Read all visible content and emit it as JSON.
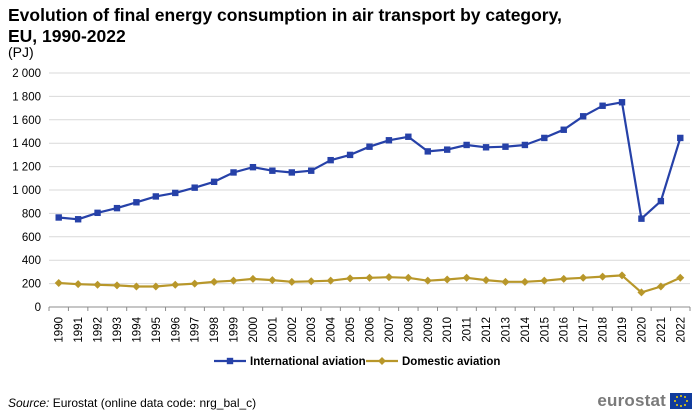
{
  "title": "Evolution of final energy consumption in air transport by category, EU, 1990-2022",
  "unit": "(PJ)",
  "source": {
    "label": "Source:",
    "text": " Eurostat (online data code: nrg_bal_c)"
  },
  "logo": {
    "text": "eurostat"
  },
  "colors": {
    "international": "#2641a8",
    "domestic": "#b8972a",
    "grid": "#d9d9d9"
  },
  "chart_data": {
    "type": "line",
    "title": "Evolution of final energy consumption in air transport by category, EU, 1990-2022",
    "ylabel": "(PJ)",
    "xlabel": "",
    "ylim": [
      0,
      2000
    ],
    "yticks": [
      0,
      200,
      400,
      600,
      800,
      1000,
      1200,
      1400,
      1600,
      1800,
      2000
    ],
    "ytick_labels": [
      "0",
      "200",
      "400",
      "600",
      "800",
      "1 000",
      "1 200",
      "1 400",
      "1 600",
      "1 800",
      "2 000"
    ],
    "grid": true,
    "legend": "bottom-center",
    "categories": [
      "1990",
      "1991",
      "1992",
      "1993",
      "1994",
      "1995",
      "1996",
      "1997",
      "1998",
      "1999",
      "2000",
      "2001",
      "2002",
      "2003",
      "2004",
      "2005",
      "2006",
      "2007",
      "2008",
      "2009",
      "2010",
      "2011",
      "2012",
      "2013",
      "2014",
      "2015",
      "2016",
      "2017",
      "2018",
      "2019",
      "2020",
      "2021",
      "2022"
    ],
    "series": [
      {
        "name": "International aviation",
        "marker": "square",
        "values": [
          765,
          750,
          805,
          845,
          895,
          945,
          975,
          1020,
          1070,
          1150,
          1195,
          1165,
          1150,
          1165,
          1255,
          1300,
          1370,
          1425,
          1455,
          1330,
          1345,
          1385,
          1365,
          1370,
          1385,
          1445,
          1515,
          1630,
          1720,
          1750,
          755,
          905,
          1445
        ]
      },
      {
        "name": "Domestic aviation",
        "marker": "diamond",
        "values": [
          205,
          195,
          190,
          185,
          175,
          175,
          190,
          200,
          215,
          225,
          240,
          230,
          215,
          220,
          225,
          245,
          250,
          255,
          250,
          225,
          235,
          250,
          230,
          215,
          215,
          225,
          240,
          250,
          260,
          270,
          125,
          175,
          250
        ]
      }
    ]
  }
}
